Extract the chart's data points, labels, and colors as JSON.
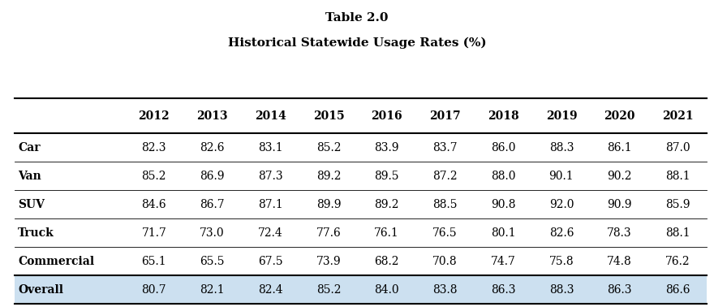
{
  "title_line1": "Table 2.0",
  "title_line2": "Historical Statewide Usage Rates (%)",
  "years": [
    "2012",
    "2013",
    "2014",
    "2015",
    "2016",
    "2017",
    "2018",
    "2019",
    "2020",
    "2021"
  ],
  "rows": [
    {
      "label": "Car",
      "values": [
        82.3,
        82.6,
        83.1,
        85.2,
        83.9,
        83.7,
        86.0,
        88.3,
        86.1,
        87.0
      ],
      "highlight": false
    },
    {
      "label": "Van",
      "values": [
        85.2,
        86.9,
        87.3,
        89.2,
        89.5,
        87.2,
        88.0,
        90.1,
        90.2,
        88.1
      ],
      "highlight": false
    },
    {
      "label": "SUV",
      "values": [
        84.6,
        86.7,
        87.1,
        89.9,
        89.2,
        88.5,
        90.8,
        92.0,
        90.9,
        85.9
      ],
      "highlight": false
    },
    {
      "label": "Truck",
      "values": [
        71.7,
        73.0,
        72.4,
        77.6,
        76.1,
        76.5,
        80.1,
        82.6,
        78.3,
        88.1
      ],
      "highlight": false
    },
    {
      "label": "Commercial",
      "values": [
        65.1,
        65.5,
        67.5,
        73.9,
        68.2,
        70.8,
        74.7,
        75.8,
        74.8,
        76.2
      ],
      "highlight": false
    },
    {
      "label": "Overall",
      "values": [
        80.7,
        82.1,
        82.4,
        85.2,
        84.0,
        83.8,
        86.3,
        88.3,
        86.3,
        86.6
      ],
      "highlight": true
    }
  ],
  "highlight_color": "#cce0f0",
  "background_color": "#ffffff",
  "thick_line_color": "#000000",
  "thin_line_color": "#000000",
  "text_color": "#000000",
  "title_fontsize": 11,
  "header_fontsize": 10,
  "cell_fontsize": 10,
  "label_fontsize": 10
}
